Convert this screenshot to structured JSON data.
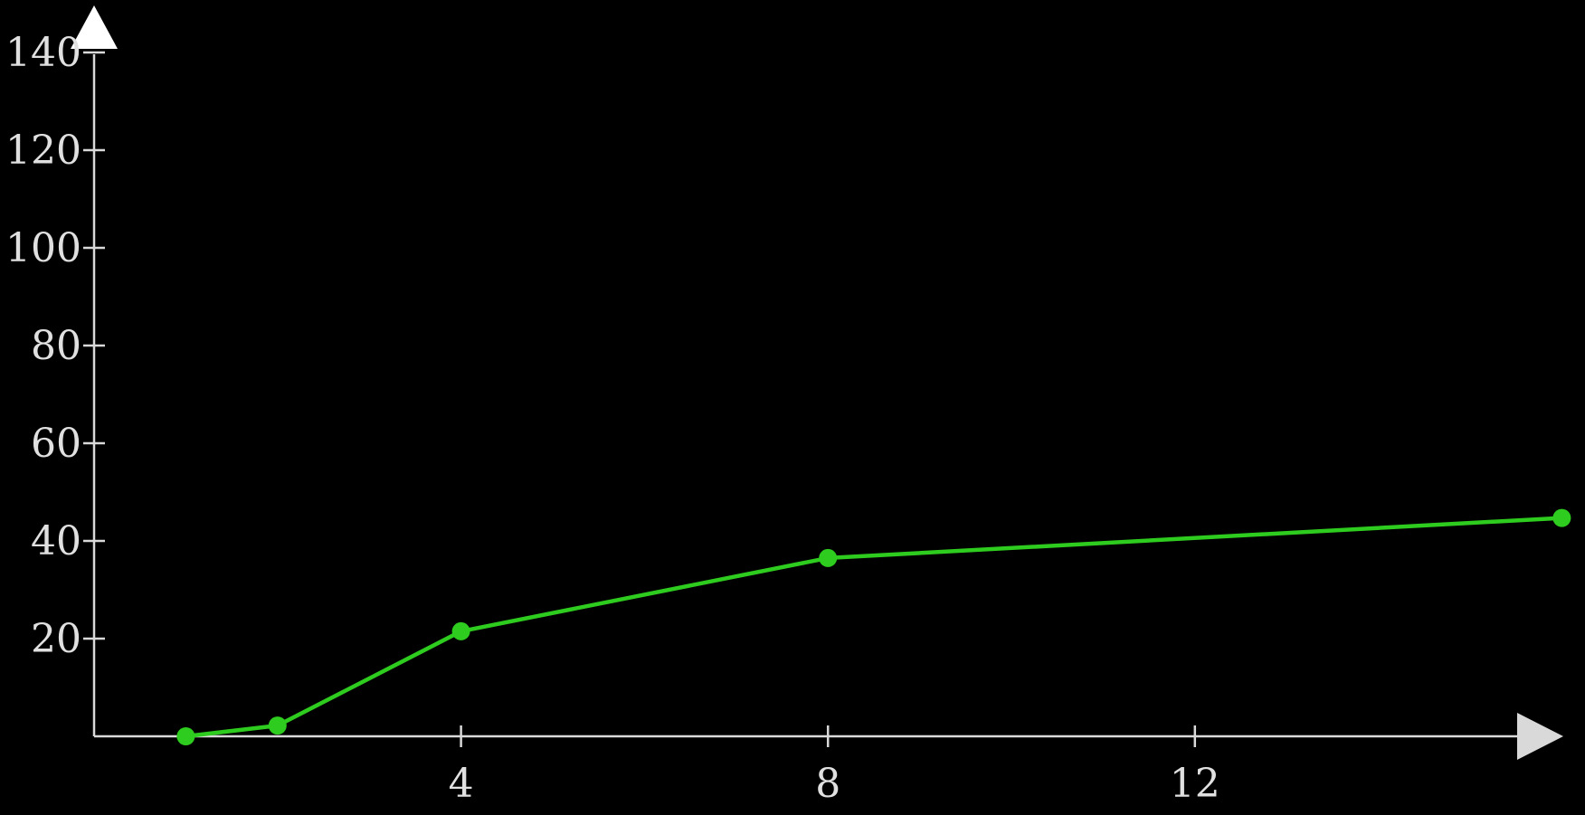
{
  "chart_data": {
    "type": "line",
    "title": "",
    "xlabel": "",
    "ylabel": "",
    "xlim": [
      0,
      16
    ],
    "ylim": [
      0,
      140
    ],
    "x_ticks": [
      "4",
      "8",
      "12"
    ],
    "y_ticks": [
      "20",
      "40",
      "60",
      "80",
      "100",
      "120",
      "140"
    ],
    "grid": false,
    "series": [
      {
        "color": "#2ecc1f",
        "points": [
          {
            "x": 1,
            "y": 0
          },
          {
            "x": 2,
            "y": 2.2
          },
          {
            "x": 4,
            "y": 21.5
          },
          {
            "x": 8,
            "y": 36.5
          },
          {
            "x": 16,
            "y": 44.7
          }
        ]
      }
    ]
  }
}
